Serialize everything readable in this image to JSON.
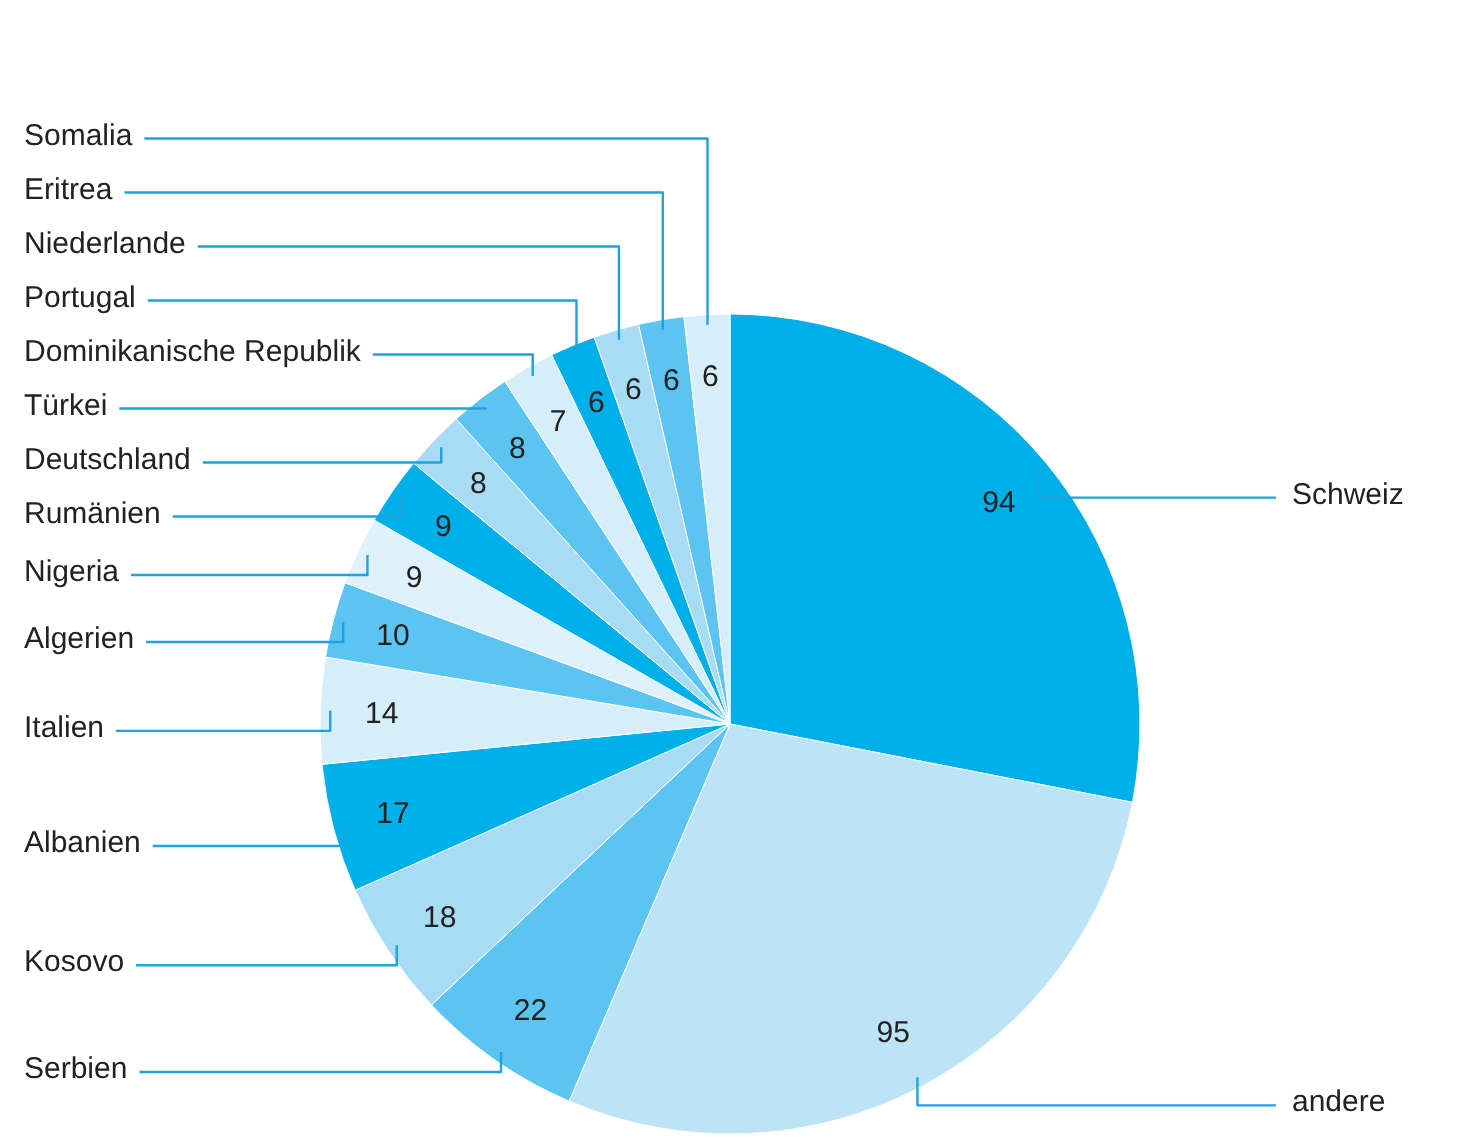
{
  "chart_data": {
    "type": "pie",
    "categories": [
      "Schweiz",
      "andere",
      "Serbien",
      "Kosovo",
      "Albanien",
      "Italien",
      "Algerien",
      "Nigeria",
      "Rumänien",
      "Deutschland",
      "Türkei",
      "Dominikanische Republik",
      "Portugal",
      "Niederlande",
      "Eritrea",
      "Somalia"
    ],
    "values": [
      94,
      95,
      22,
      18,
      17,
      14,
      10,
      9,
      9,
      8,
      8,
      7,
      6,
      6,
      6,
      6
    ],
    "colors": [
      "#00aee8",
      "#bde3f7",
      "#5bc4f1",
      "#a8dcf5",
      "#00b0e8",
      "#d5eefa",
      "#5bc4f1",
      "#dff2fb",
      "#00aee8",
      "#a8dcf5",
      "#5bc4f1",
      "#d5eefa",
      "#00aee8",
      "#a8dcf5",
      "#5bc4f1",
      "#d5eefa"
    ],
    "data_labels": true
  }
}
